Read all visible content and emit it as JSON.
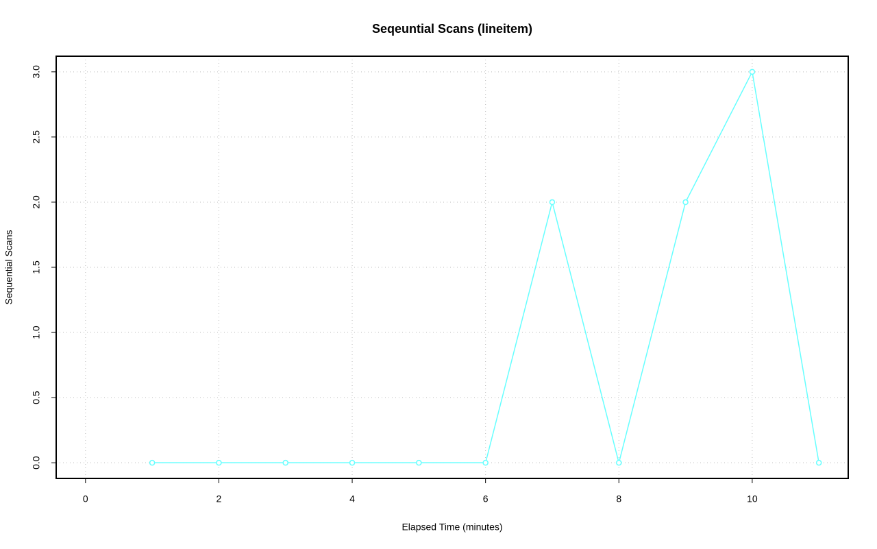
{
  "chart_data": {
    "type": "line",
    "title": "Seqeuntial Scans (lineitem)",
    "x_label": "Elapsed Time (minutes)",
    "y_label": "Sequential Scans",
    "x": [
      1,
      2,
      3,
      4,
      5,
      6,
      7,
      8,
      9,
      10,
      11
    ],
    "series": [
      {
        "color": "#66ffff",
        "values": [
          0,
          0,
          0,
          0,
          0,
          0,
          2,
          0,
          2,
          3,
          0
        ]
      }
    ],
    "xlim": [
      -0.44,
      11.44
    ],
    "ylim": [
      -0.12,
      3.12
    ],
    "xticks": [
      0,
      2,
      4,
      6,
      8,
      10
    ],
    "yticks": [
      {
        "value": 0,
        "label": "0.0"
      },
      {
        "value": 0.5,
        "label": "0.5"
      },
      {
        "value": 1,
        "label": "1.0"
      },
      {
        "value": 1.5,
        "label": "1.5"
      },
      {
        "value": 2,
        "label": "2.0"
      },
      {
        "value": 2.5,
        "label": "2.5"
      },
      {
        "value": 3,
        "label": "3.0"
      }
    ],
    "grid": true
  }
}
